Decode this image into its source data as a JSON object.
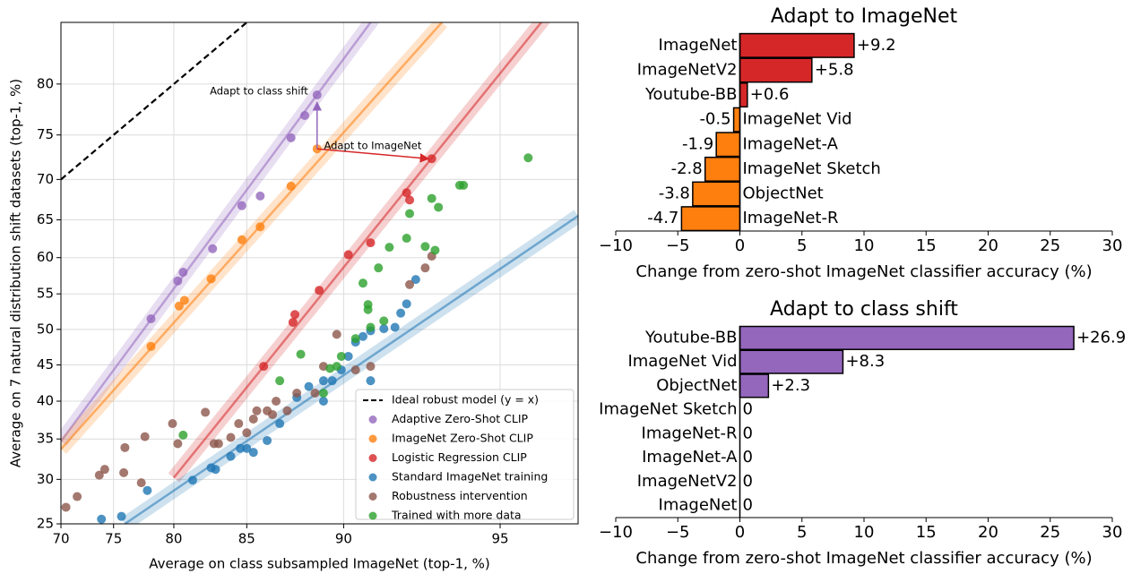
{
  "chart_data": [
    {
      "type": "scatter",
      "scale": "logit",
      "grid": true,
      "legend": "lower right",
      "xlabel": "Average on class subsampled ImageNet (top-1, %)",
      "ylabel": "Average on 7 natural distribution shift datasets (top-1, %)",
      "xlim": [
        70,
        96.5
      ],
      "ylim": [
        25,
        85
      ],
      "xticks": [
        70,
        75,
        80,
        85,
        90,
        95
      ],
      "yticks": [
        25,
        30,
        35,
        40,
        45,
        50,
        55,
        60,
        65,
        70,
        75,
        80
      ],
      "series": [
        {
          "name": "Ideal robust model (y = x)",
          "color": "#000000",
          "style": "dashed",
          "x": [
            70,
            85
          ],
          "y": [
            70,
            85
          ]
        },
        {
          "name": "Adaptive Zero-Shot CLIP",
          "color": "#9467bd",
          "fit_x": [
            70,
            91.5
          ],
          "fit_y": [
            34.7,
            86
          ],
          "x": [
            78.2,
            80.3,
            80.7,
            82.8,
            84.7,
            85.8,
            87.5,
            88.2,
            88.8
          ],
          "y": [
            51.5,
            56.8,
            58,
            61.2,
            66.8,
            68,
            74.7,
            77,
            79
          ]
        },
        {
          "name": "ImageNet Zero-Shot CLIP",
          "color": "#ff7f0e",
          "fit_x": [
            70,
            93.5
          ],
          "fit_y": [
            33.7,
            85
          ],
          "x": [
            78.2,
            80.4,
            80.8,
            82.7,
            84.7,
            85.8,
            87.5,
            88.8
          ],
          "y": [
            47.6,
            53.3,
            54.1,
            57.1,
            62.4,
            64.1,
            69.2,
            73.5
          ]
        },
        {
          "name": "Logistic Regression CLIP",
          "color": "#d62728",
          "fit_x": [
            80,
            96.5
          ],
          "fit_y": [
            30.2,
            88
          ],
          "x": [
            86,
            87.6,
            87.7,
            88.9,
            90.2,
            91.1,
            92.4,
            92.5,
            93.2
          ],
          "y": [
            44.8,
            51,
            52.1,
            55.5,
            60.4,
            62,
            68.4,
            67.5,
            72.4
          ]
        },
        {
          "name": "Standard ImageNet training",
          "color": "#1f77b4",
          "fit_x": [
            76,
            96.5
          ],
          "fit_y": [
            25,
            65.5
          ],
          "x": [
            73.9,
            75.7,
            77.9,
            81.4,
            83,
            84,
            84.6,
            85.4,
            86.2,
            86.9,
            87.8,
            88.4,
            89.1,
            89.5,
            89.9,
            90.2,
            90.5,
            90.8,
            91.1,
            91.6,
            92,
            92.2,
            92.4,
            92.7,
            91.1,
            89.1,
            85,
            82.7
          ],
          "y": [
            25.5,
            25.8,
            28.7,
            29.9,
            31.2,
            32.8,
            33.8,
            33.3,
            34.8,
            37,
            40.5,
            42,
            40,
            42.8,
            44.3,
            46.2,
            48.2,
            49,
            49.8,
            50.1,
            50.3,
            52.3,
            53.6,
            57,
            42.8,
            42.8,
            33.8,
            31.4
          ]
        },
        {
          "name": "Robustness intervention",
          "color": "#8c564b",
          "x": [
            70.5,
            71.6,
            73.7,
            74.2,
            75.9,
            76,
            77.4,
            77.7,
            79.9,
            80.3,
            82.3,
            82.9,
            84.5,
            85,
            85.6,
            86.2,
            86.7,
            87.3,
            87.8,
            88.7,
            89.1,
            89.7,
            90.5,
            91.1,
            92.5,
            93,
            93.2,
            83.2,
            84,
            85.4,
            86.5
          ],
          "y": [
            26.8,
            28,
            30.5,
            31.2,
            30.8,
            33.9,
            29.6,
            35.3,
            37,
            34.4,
            38.5,
            34.4,
            37,
            35.8,
            38.7,
            38.7,
            40,
            38.7,
            41.1,
            41.1,
            44.8,
            49.3,
            44.3,
            44.8,
            56.3,
            58.6,
            60.2,
            34.4,
            35.2,
            37.6,
            38.2
          ]
        },
        {
          "name": "Trained with more data",
          "color": "#2ca02c",
          "x": [
            95.6,
            94,
            94.1,
            93.2,
            93.4,
            93,
            93.3,
            92.5,
            92.4,
            91.8,
            91.4,
            90.8,
            91,
            91,
            91.1,
            91.6,
            89.9,
            90.5,
            89.4,
            89.7,
            88,
            89.1,
            80.7,
            86.9
          ],
          "y": [
            72.5,
            69.3,
            69.3,
            67.7,
            66.6,
            61.5,
            61,
            65.8,
            62.6,
            61.4,
            58.6,
            56.5,
            53.5,
            52.8,
            50.3,
            51.2,
            46.2,
            48.7,
            44.5,
            44.8,
            46.5,
            41.1,
            35.5,
            42.8
          ]
        }
      ],
      "annotations": [
        {
          "text": "Adapt to class shift",
          "color": "#9467bd",
          "from": [
            88.8,
            73.5
          ],
          "to": [
            88.8,
            78.3
          ]
        },
        {
          "text": "Adapt to ImageNet",
          "color": "#d62728",
          "from": [
            88.8,
            73.5
          ],
          "to": [
            93.1,
            72.4
          ]
        }
      ]
    },
    {
      "type": "bar",
      "title": "Adapt to ImageNet",
      "title_color": "#d62728",
      "xlabel": "Change from zero-shot ImageNet classifier accuracy (%)",
      "categories": [
        "ImageNet",
        "ImageNetV2",
        "Youtube-BB",
        "ImageNet Vid",
        "ImageNet-A",
        "ImageNet Sketch",
        "ObjectNet",
        "ImageNet-R"
      ],
      "values": [
        9.2,
        5.8,
        0.6,
        -0.5,
        -1.9,
        -2.8,
        -3.8,
        -4.7
      ],
      "value_labels": [
        "+9.2",
        "+5.8",
        "+0.6",
        "-0.5",
        "-1.9",
        "-2.8",
        "-3.8",
        "-4.7"
      ],
      "colors": [
        "#d62728",
        "#d62728",
        "#d62728",
        "#ff7f0e",
        "#ff7f0e",
        "#ff7f0e",
        "#ff7f0e",
        "#ff7f0e"
      ],
      "xlim": [
        -10,
        30
      ],
      "xticks": [
        {
          "value": -10,
          "label": "−10"
        },
        {
          "value": -5,
          "label": "−5"
        },
        0,
        5,
        10,
        15,
        20,
        25,
        30
      ]
    },
    {
      "type": "bar",
      "title": "Adapt to class shift",
      "title_color": "#9467bd",
      "xlabel": "Change from zero-shot ImageNet classifier accuracy (%)",
      "categories": [
        "Youtube-BB",
        "ImageNet Vid",
        "ObjectNet",
        "ImageNet Sketch",
        "ImageNet-R",
        "ImageNet-A",
        "ImageNetV2",
        "ImageNet"
      ],
      "values": [
        26.9,
        8.3,
        2.3,
        0,
        0,
        0,
        0,
        0
      ],
      "value_labels": [
        "+26.9",
        "+8.3",
        "+2.3",
        "0",
        "0",
        "0",
        "0",
        "0"
      ],
      "colors": [
        "#9467bd",
        "#9467bd",
        "#9467bd",
        "#9467bd",
        "#9467bd",
        "#9467bd",
        "#9467bd",
        "#9467bd"
      ],
      "xlim": [
        -10,
        30
      ],
      "xticks": [
        {
          "value": -10,
          "label": "−10"
        },
        {
          "value": -5,
          "label": "−5"
        },
        0,
        5,
        10,
        15,
        20,
        25,
        30
      ]
    }
  ]
}
